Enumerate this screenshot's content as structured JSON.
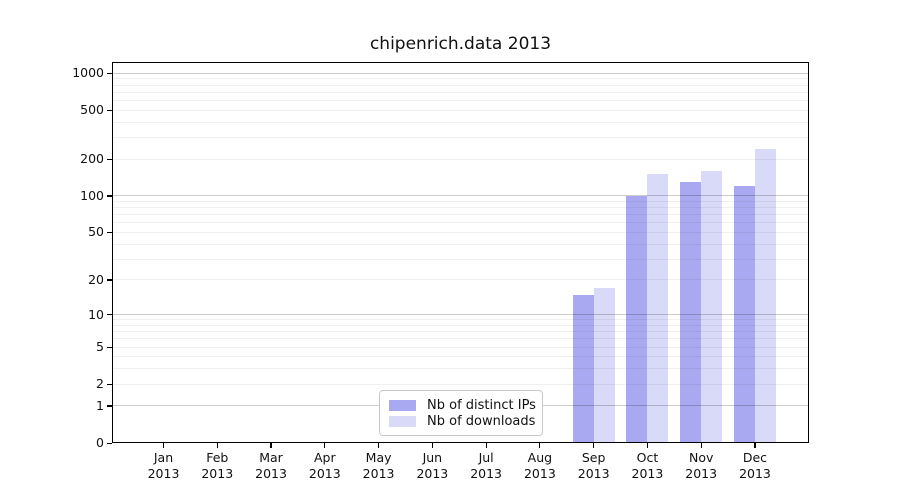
{
  "chart": {
    "title": "chipenrich.data 2013"
  },
  "chart_data": {
    "type": "bar",
    "title": "chipenrich.data 2013",
    "yscale": "log1p",
    "categories": [
      "Jan 2013",
      "Feb 2013",
      "Mar 2013",
      "Apr 2013",
      "May 2013",
      "Jun 2013",
      "Jul 2013",
      "Aug 2013",
      "Sep 2013",
      "Oct 2013",
      "Nov 2013",
      "Dec 2013"
    ],
    "series": [
      {
        "name": "Nb of distinct IPs",
        "color": "#a9a9f1",
        "values": [
          0,
          0,
          0,
          0,
          0,
          0,
          0,
          0,
          15,
          100,
          130,
          120
        ]
      },
      {
        "name": "Nb of downloads",
        "color": "#d9d9f8",
        "values": [
          0,
          0,
          0,
          0,
          0,
          0,
          0,
          0,
          17,
          150,
          160,
          240
        ]
      }
    ],
    "yticks": [
      0,
      1,
      2,
      5,
      10,
      20,
      50,
      100,
      200,
      500,
      1000
    ],
    "ylim": [
      0,
      1230
    ],
    "xlabel": "",
    "ylabel": "",
    "grid": "horizontal, major and log-minor lines",
    "legend_position": "lower center, inside axes"
  },
  "style": {
    "bar_ips_color": "#a9a9f1",
    "bar_downloads_color": "#d9d9f8",
    "grid_major_color": "rgba(0,0,0,0.20)",
    "grid_minor_color": "rgba(0,0,0,0.06)",
    "spine_color": "#000000",
    "text_color": "#111111",
    "background_color": "#ffffff"
  }
}
